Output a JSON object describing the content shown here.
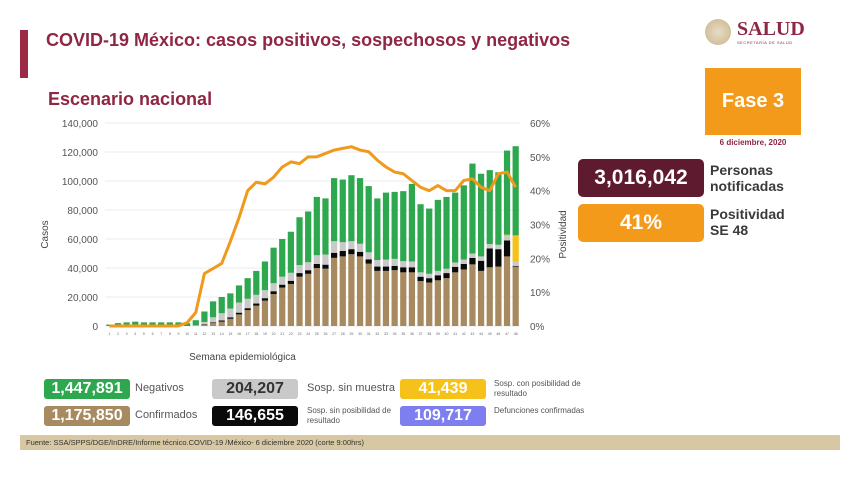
{
  "header": {
    "title": "COVID-19 México: casos positivos, sospechosos y negativos",
    "subtitle": "Escenario nacional",
    "logo_text": "SALUD",
    "logo_subtext": "SECRETARÍA DE SALUD"
  },
  "side": {
    "fase": "Fase 3",
    "fecha": "6 diciembre, 2020",
    "notificadas_value": "3,016,042",
    "notificadas_label_1": "Personas",
    "notificadas_label_2": "notificadas",
    "positividad_value": "41%",
    "positividad_label_1": "Positividad",
    "positividad_label_2": "SE 48"
  },
  "legend": [
    {
      "value": "1,447,891",
      "label": "Negativos",
      "color": "#2ea84f"
    },
    {
      "value": "204,207",
      "label": "Sosp. sin muestra",
      "color": "#c9c9c9"
    },
    {
      "value": "41,439",
      "label": "Sosp. con posibilidad de resultado",
      "color": "#f6c21a"
    },
    {
      "value": "1,175,850",
      "label": "Confirmados",
      "color": "#a88a60"
    },
    {
      "value": "146,655",
      "label": "Sosp. sin posibilidad de resultado",
      "color": "#0a0a0a"
    },
    {
      "value": "109,717",
      "label": "Defunciones confirmadas",
      "color": "#7d7ff0"
    }
  ],
  "footer": "Fuente: SSA/SPPS/DGE/InDRE/Informe técnico.COVID-19 /México- 6 diciembre 2020 (corte 9:00hrs)",
  "chart_data": {
    "type": "bar",
    "stacked": true,
    "xlabel": "Semana epidemiológica",
    "ylabel": "Casos",
    "y2label": "Positividad",
    "ylim": [
      0,
      140000
    ],
    "y2lim": [
      0,
      60
    ],
    "yticks": [
      "0",
      "20,000",
      "40,000",
      "60,000",
      "80,000",
      "100,000",
      "120,000",
      "140,000"
    ],
    "y2ticks": [
      "0%",
      "10%",
      "20%",
      "30%",
      "40%",
      "50%",
      "60%"
    ],
    "grid": true,
    "categories": [
      "1",
      "2",
      "3",
      "4",
      "5",
      "6",
      "7",
      "8",
      "9",
      "10",
      "11",
      "12",
      "13",
      "14",
      "15",
      "16",
      "17",
      "18",
      "19",
      "20",
      "21",
      "22",
      "23",
      "24",
      "25",
      "26",
      "27",
      "28",
      "29",
      "30",
      "31",
      "32",
      "33",
      "34",
      "35",
      "36",
      "37",
      "38",
      "39",
      "40",
      "41",
      "42",
      "43",
      "44",
      "45",
      "46",
      "47",
      "48"
    ],
    "series": [
      {
        "key": "confirmados",
        "color": "#a88a60",
        "values": [
          0,
          0,
          0,
          0,
          0,
          0,
          0,
          0,
          0,
          0,
          100,
          1000,
          2000,
          3000,
          5000,
          8000,
          11000,
          14000,
          17500,
          22000,
          26500,
          29000,
          34000,
          36000,
          40000,
          39500,
          47000,
          48000,
          49500,
          48000,
          43000,
          38000,
          38000,
          38500,
          37000,
          37000,
          31000,
          30000,
          31500,
          33000,
          37000,
          39000,
          42500,
          38000,
          40500,
          41000,
          48000,
          41000
        ]
      },
      {
        "key": "sin_posibilidad",
        "color": "#0a0a0a",
        "values": [
          0,
          0,
          0,
          0,
          0,
          0,
          0,
          0,
          0,
          0,
          0,
          300,
          500,
          800,
          1000,
          1200,
          1300,
          1500,
          1700,
          2000,
          2000,
          2200,
          2500,
          2500,
          2800,
          2800,
          3500,
          3800,
          3500,
          3200,
          3000,
          3000,
          3000,
          3000,
          3500,
          3500,
          3000,
          3000,
          3500,
          3500,
          3800,
          3800,
          4500,
          7000,
          13000,
          12000,
          11000,
          500
        ]
      },
      {
        "key": "sin_muestra",
        "color": "#c9c9c9",
        "values": [
          0,
          0,
          0,
          0,
          0,
          0,
          0,
          0,
          0,
          0,
          300,
          1500,
          3500,
          5000,
          6000,
          7000,
          6500,
          6000,
          5500,
          5500,
          5500,
          5500,
          5500,
          5500,
          6000,
          7000,
          8000,
          6000,
          5500,
          5500,
          4800,
          4500,
          4800,
          4800,
          4200,
          4000,
          3000,
          3000,
          3000,
          3000,
          3000,
          3000,
          3000,
          3000,
          3000,
          3000,
          3000,
          3000
        ]
      },
      {
        "key": "con_posibilidad",
        "color": "#f6c21a",
        "values": [
          0,
          0,
          0,
          0,
          0,
          0,
          0,
          0,
          0,
          0,
          0,
          0,
          0,
          0,
          0,
          0,
          0,
          0,
          0,
          0,
          0,
          0,
          0,
          0,
          0,
          0,
          0,
          0,
          0,
          0,
          0,
          0,
          0,
          0,
          0,
          0,
          0,
          0,
          0,
          0,
          0,
          0,
          0,
          0,
          0,
          0,
          1000,
          18000
        ]
      },
      {
        "key": "negativos",
        "color": "#2ea84f",
        "values": [
          1000,
          2000,
          2500,
          3000,
          2500,
          2500,
          2500,
          2500,
          2500,
          2000,
          3600,
          7200,
          11000,
          11200,
          10500,
          11800,
          14200,
          16500,
          19800,
          24500,
          26000,
          28300,
          33000,
          35000,
          40200,
          38700,
          43500,
          43200,
          45500,
          45300,
          45700,
          42500,
          46200,
          46200,
          48300,
          53500,
          47000,
          45000,
          49000,
          49500,
          48200,
          51200,
          62000,
          57000,
          51000,
          50000,
          58000,
          61500
        ]
      }
    ],
    "line": {
      "key": "positividad",
      "color": "#ef9a1c",
      "values": [
        0,
        0,
        0,
        0,
        0,
        0,
        0,
        0,
        0,
        1,
        4,
        15.5,
        17,
        18.5,
        25,
        32,
        40,
        42.5,
        42,
        44,
        47,
        48.5,
        48,
        50,
        50,
        51,
        52,
        52.5,
        53,
        52,
        51.5,
        49,
        47,
        45.5,
        45,
        43,
        41,
        40,
        41.5,
        40,
        40,
        43,
        43.5,
        41,
        40,
        45,
        45.5,
        41
      ]
    }
  }
}
